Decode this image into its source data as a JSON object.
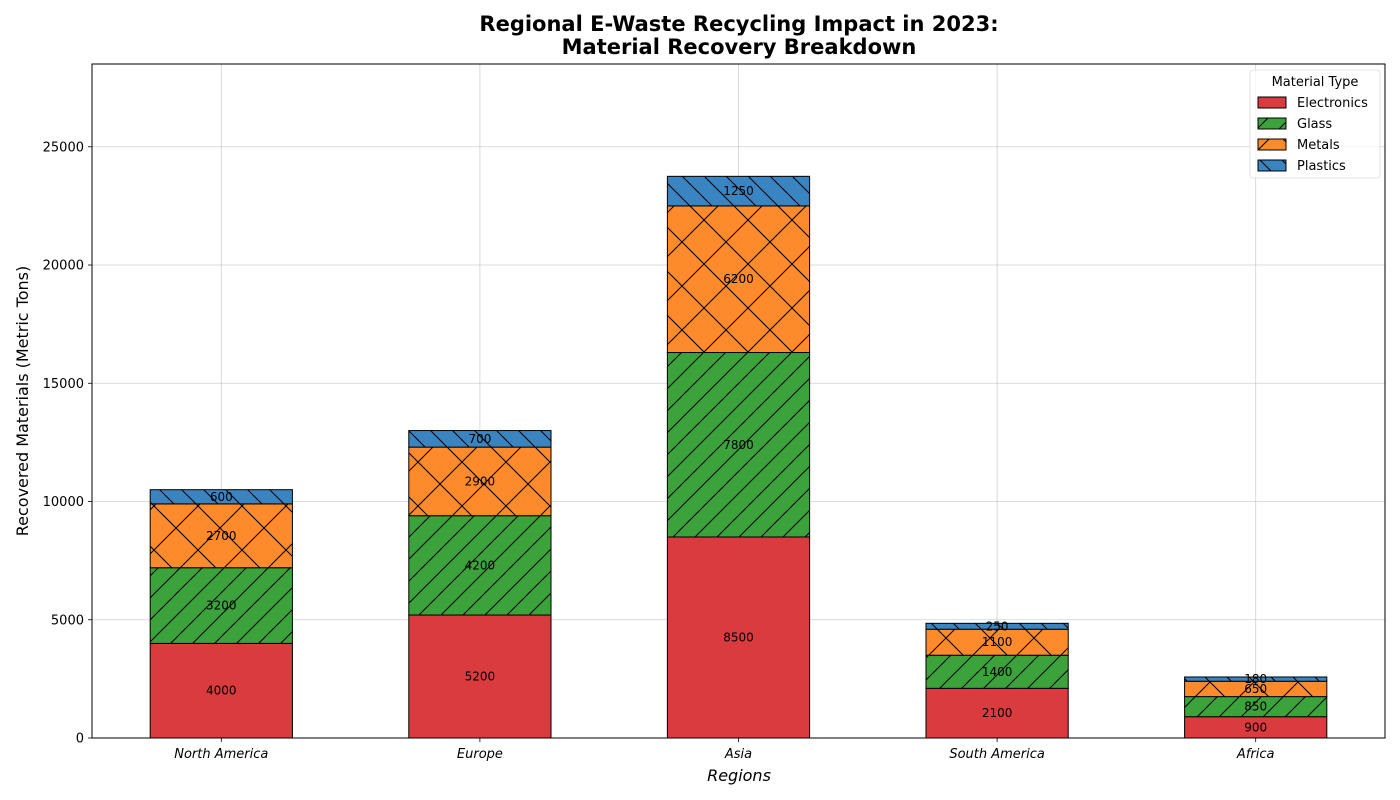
{
  "chart_data": {
    "type": "bar",
    "stacked": true,
    "title_line1": "Regional E-Waste Recycling Impact in 2023:",
    "title_line2": "Material Recovery Breakdown",
    "xlabel": "Regions",
    "ylabel": "Recovered Materials (Metric Tons)",
    "categories": [
      "North America",
      "Europe",
      "Asia",
      "South America",
      "Africa"
    ],
    "ylim": [
      0,
      28500
    ],
    "yticks": [
      0,
      5000,
      10000,
      15000,
      20000,
      25000
    ],
    "grid": true,
    "legend": {
      "title": "Material Type",
      "placement": "top-right"
    },
    "series": [
      {
        "name": "Electronics",
        "color": "#d93b3e",
        "hatch": "none",
        "values": [
          4000,
          5200,
          8500,
          2100,
          900
        ]
      },
      {
        "name": "Glass",
        "color": "#3ca23c",
        "hatch": "diagonal",
        "values": [
          3200,
          4200,
          7800,
          1400,
          850
        ]
      },
      {
        "name": "Metals",
        "color": "#fd8a2b",
        "hatch": "cross",
        "values": [
          2700,
          2900,
          6200,
          1100,
          650
        ]
      },
      {
        "name": "Plastics",
        "color": "#3a85c1",
        "hatch": "backslash",
        "values": [
          600,
          700,
          1250,
          250,
          180
        ]
      }
    ]
  }
}
